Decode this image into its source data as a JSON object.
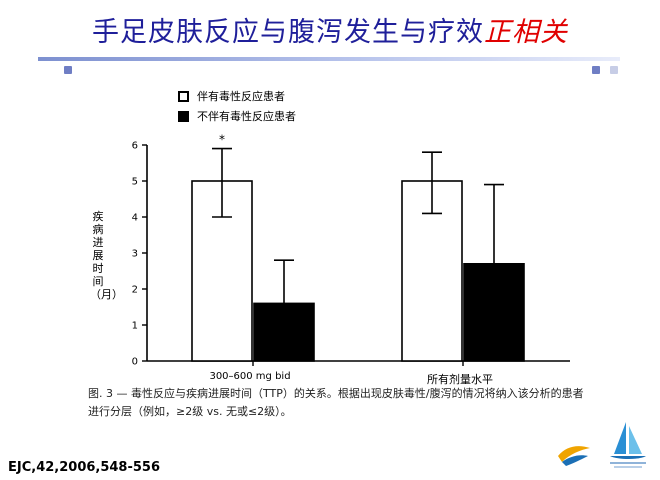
{
  "slide": {
    "title_main": "手足皮肤反应与腹泻发生与疗效",
    "title_emphasis": "正相关",
    "citation": "EJC,42,2006,548-556"
  },
  "colors": {
    "title": "#1f1f9a",
    "emphasis": "#e00000",
    "rule": "#7d90d0"
  },
  "chart_data": {
    "type": "bar",
    "categories": [
      "300–600 mg bid",
      "所有剂量水平"
    ],
    "series": [
      {
        "name": "伴有毒性反应患者",
        "values": [
          5.0,
          5.0
        ],
        "error_low": [
          4.0,
          4.1
        ],
        "error_high": [
          5.9,
          5.8
        ],
        "fill": "#ffffff"
      },
      {
        "name": "不伴有毒性反应患者",
        "values": [
          1.6,
          2.7
        ],
        "error_low": [
          1.6,
          2.7
        ],
        "error_high": [
          2.8,
          4.9
        ],
        "fill": "#000000"
      }
    ],
    "ylabel": "疾病进展时间（月）",
    "ylim": [
      0,
      6
    ],
    "yticks": [
      0,
      1,
      2,
      3,
      4,
      5,
      6
    ],
    "annotations": [
      {
        "text": "*",
        "category": 0,
        "series": 0
      }
    ],
    "legend": "top-left",
    "grid": false,
    "caption": "图. 3 — 毒性反应与疾病进展时间（TTP）的关系。根据出现皮肤毒性/腹泻的情况将纳入该分析的患者进行分层（例如，≥2级 vs. 无或≤2级）。"
  }
}
